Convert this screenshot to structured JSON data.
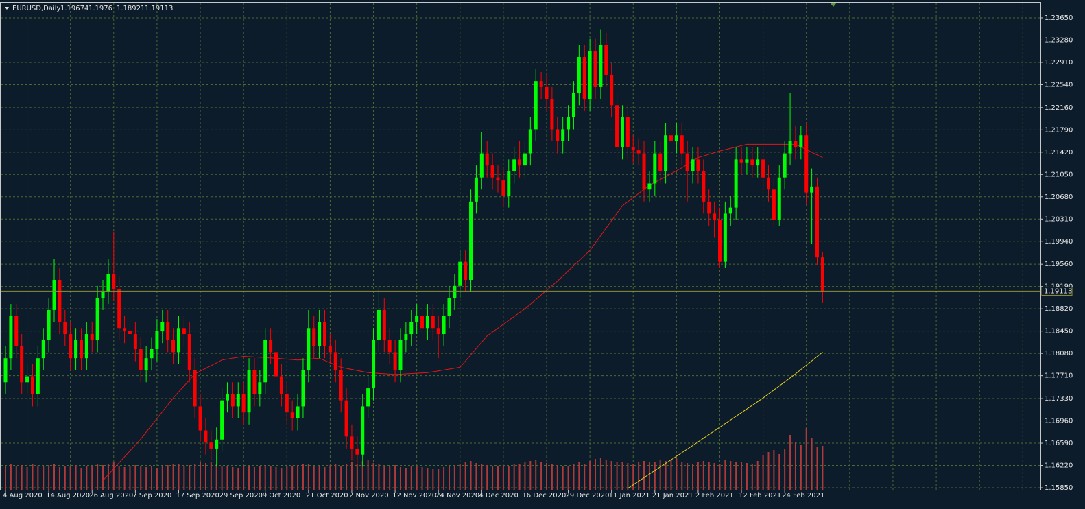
{
  "chart_data": {
    "type": "candlestick",
    "title": "EURUSD,Daily",
    "categories": [
      "4 Aug 2020",
      null,
      null,
      null,
      null,
      null,
      null,
      null,
      "14 Aug 2020",
      null,
      null,
      null,
      null,
      null,
      null,
      null,
      "26 Aug 2020",
      null,
      null,
      null,
      null,
      null,
      null,
      null,
      "7 Sep 2020",
      null,
      null,
      null,
      null,
      null,
      null,
      null,
      "17 Sep 2020",
      null,
      null,
      null,
      null,
      null,
      null,
      null,
      "29 Sep 2020",
      null,
      null,
      null,
      null,
      null,
      null,
      null,
      "9 Oct 2020",
      null,
      null,
      null,
      null,
      null,
      null,
      null,
      "21 Oct 2020",
      null,
      null,
      null,
      null,
      null,
      null,
      null,
      "2 Nov 2020",
      null,
      null,
      null,
      null,
      null,
      null,
      null,
      "12 Nov 2020",
      null,
      null,
      null,
      null,
      null,
      null,
      null,
      "24 Nov 2020",
      null,
      null,
      null,
      null,
      null,
      null,
      null,
      "4 Dec 2020",
      null,
      null,
      null,
      null,
      null,
      null,
      null,
      "16 Dec 2020",
      null,
      null,
      null,
      null,
      null,
      null,
      null,
      "29 Dec 2020",
      null,
      null,
      null,
      null,
      null,
      null,
      null,
      "11 Jan 2021",
      null,
      null,
      null,
      null,
      null,
      null,
      null,
      "21 Jan 2021",
      null,
      null,
      null,
      null,
      null,
      null,
      null,
      "2 Feb 2021",
      null,
      null,
      null,
      null,
      null,
      null,
      null,
      "12 Feb 2021",
      null,
      null,
      null,
      null,
      null,
      null,
      null,
      "24 Feb 2021",
      null,
      null,
      null,
      null,
      null,
      null,
      null
    ],
    "open": [
      1.176,
      1.18,
      1.187,
      1.182,
      1.176,
      1.177,
      1.174,
      1.18,
      1.183,
      1.188,
      1.193,
      1.186,
      1.184,
      1.18,
      1.183,
      1.18,
      1.184,
      1.183,
      1.19,
      1.191,
      1.194,
      1.1915,
      1.185,
      1.1845,
      1.184,
      1.1815,
      1.178,
      1.18,
      1.1815,
      1.1845,
      1.186,
      1.183,
      1.181,
      1.185,
      1.184,
      1.178,
      1.172,
      1.168,
      1.166,
      1.165,
      1.1665,
      1.173,
      1.174,
      1.172,
      1.174,
      1.171,
      1.178,
      1.174,
      1.176,
      1.183,
      1.181,
      1.177,
      1.174,
      1.171,
      1.17,
      1.172,
      1.178,
      1.185,
      1.182,
      1.186,
      1.182,
      1.181,
      1.178,
      1.173,
      1.167,
      1.165,
      1.164,
      1.172,
      1.175,
      1.183,
      1.188,
      1.183,
      1.181,
      1.178,
      1.183,
      1.184,
      1.186,
      1.187,
      1.185,
      1.187,
      1.185,
      1.184,
      1.187,
      1.19,
      1.192,
      1.196,
      1.193,
      1.206,
      1.21,
      1.214,
      1.212,
      1.21,
      1.2095,
      1.207,
      1.211,
      1.213,
      1.212,
      1.214,
      1.218,
      1.226,
      1.225,
      1.223,
      1.218,
      1.216,
      1.218,
      1.22,
      1.224,
      1.23,
      1.223,
      1.231,
      1.225,
      1.232,
      1.227,
      1.222,
      1.215,
      1.22,
      1.215,
      1.2145,
      1.214,
      1.208,
      1.209,
      1.214,
      1.211,
      1.217,
      1.216,
      1.217,
      1.214,
      1.211,
      1.213,
      1.211,
      1.206,
      1.204,
      1.203,
      1.196,
      1.204,
      1.205,
      1.213,
      1.2125,
      1.213,
      1.212,
      1.213,
      1.21,
      1.208,
      1.203,
      1.21,
      1.214,
      1.216,
      1.215,
      1.217,
      1.2075,
      1.2085,
      1.19674
    ],
    "high": [
      1.182,
      1.189,
      1.189,
      1.184,
      1.179,
      1.179,
      1.182,
      1.185,
      1.19,
      1.1965,
      1.195,
      1.188,
      1.186,
      1.185,
      1.185,
      1.186,
      1.186,
      1.192,
      1.193,
      1.1965,
      1.201,
      1.1935,
      1.187,
      1.1865,
      1.186,
      1.1835,
      1.182,
      1.1835,
      1.1865,
      1.188,
      1.188,
      1.185,
      1.187,
      1.187,
      1.186,
      1.18,
      1.174,
      1.17,
      1.168,
      1.1685,
      1.175,
      1.176,
      1.176,
      1.176,
      1.176,
      1.18,
      1.18,
      1.178,
      1.185,
      1.185,
      1.183,
      1.179,
      1.176,
      1.173,
      1.174,
      1.18,
      1.188,
      1.187,
      1.188,
      1.188,
      1.184,
      1.183,
      1.18,
      1.175,
      1.169,
      1.167,
      1.174,
      1.177,
      1.185,
      1.192,
      1.19,
      1.185,
      1.183,
      1.185,
      1.186,
      1.188,
      1.189,
      1.189,
      1.189,
      1.189,
      1.187,
      1.189,
      1.192,
      1.194,
      1.198,
      1.198,
      1.208,
      1.212,
      1.2175,
      1.216,
      1.214,
      1.212,
      1.2115,
      1.213,
      1.215,
      1.216,
      1.216,
      1.22,
      1.228,
      1.2275,
      1.227,
      1.225,
      1.22,
      1.22,
      1.222,
      1.226,
      1.232,
      1.232,
      1.233,
      1.233,
      1.2345,
      1.234,
      1.229,
      1.224,
      1.222,
      1.222,
      1.217,
      1.2165,
      1.216,
      1.211,
      1.216,
      1.216,
      1.219,
      1.219,
      1.219,
      1.219,
      1.216,
      1.215,
      1.215,
      1.213,
      1.208,
      1.206,
      1.205,
      1.206,
      1.207,
      1.215,
      1.215,
      1.215,
      1.215,
      1.215,
      1.215,
      1.212,
      1.21,
      1.212,
      1.216,
      1.224,
      1.2185,
      1.2185,
      1.219,
      1.2115,
      1.21,
      1.1976
    ],
    "low": [
      1.174,
      1.178,
      1.18,
      1.174,
      1.174,
      1.172,
      1.172,
      1.178,
      1.181,
      1.186,
      1.184,
      1.182,
      1.178,
      1.178,
      1.178,
      1.178,
      1.181,
      1.181,
      1.188,
      1.189,
      1.1895,
      1.183,
      1.1825,
      1.182,
      1.1795,
      1.176,
      1.176,
      1.178,
      1.1795,
      1.1825,
      1.181,
      1.179,
      1.179,
      1.182,
      1.176,
      1.17,
      1.166,
      1.164,
      1.163,
      1.162,
      1.1645,
      1.171,
      1.17,
      1.17,
      1.169,
      1.169,
      1.172,
      1.172,
      1.174,
      1.179,
      1.175,
      1.172,
      1.169,
      1.168,
      1.168,
      1.17,
      1.176,
      1.18,
      1.18,
      1.18,
      1.179,
      1.176,
      1.171,
      1.165,
      1.163,
      1.162,
      1.162,
      1.17,
      1.173,
      1.181,
      1.181,
      1.179,
      1.176,
      1.176,
      1.181,
      1.182,
      1.184,
      1.183,
      1.183,
      1.183,
      1.18,
      1.182,
      1.185,
      1.188,
      1.19,
      1.191,
      1.191,
      1.204,
      1.208,
      1.21,
      1.208,
      1.2075,
      1.205,
      1.205,
      1.209,
      1.21,
      1.21,
      1.212,
      1.216,
      1.223,
      1.221,
      1.216,
      1.214,
      1.214,
      1.216,
      1.218,
      1.222,
      1.221,
      1.221,
      1.223,
      1.223,
      1.225,
      1.22,
      1.213,
      1.213,
      1.213,
      1.2125,
      1.212,
      1.206,
      1.206,
      1.207,
      1.209,
      1.209,
      1.214,
      1.214,
      1.212,
      1.206,
      1.209,
      1.209,
      1.204,
      1.202,
      1.2,
      1.195,
      1.195,
      1.202,
      1.203,
      1.2105,
      1.2105,
      1.21,
      1.21,
      1.208,
      1.206,
      1.202,
      1.202,
      1.208,
      1.212,
      1.213,
      1.213,
      1.2055,
      1.199,
      1.1955,
      1.18921
    ],
    "close": [
      1.18,
      1.187,
      1.182,
      1.176,
      1.177,
      1.174,
      1.18,
      1.183,
      1.188,
      1.193,
      1.186,
      1.184,
      1.18,
      1.183,
      1.18,
      1.184,
      1.183,
      1.19,
      1.191,
      1.194,
      1.1915,
      1.185,
      1.1845,
      1.184,
      1.1815,
      1.178,
      1.18,
      1.1815,
      1.1845,
      1.186,
      1.183,
      1.181,
      1.185,
      1.184,
      1.178,
      1.172,
      1.168,
      1.166,
      1.165,
      1.1665,
      1.173,
      1.174,
      1.172,
      1.174,
      1.171,
      1.178,
      1.174,
      1.176,
      1.183,
      1.181,
      1.177,
      1.174,
      1.171,
      1.17,
      1.172,
      1.178,
      1.185,
      1.182,
      1.186,
      1.182,
      1.181,
      1.178,
      1.173,
      1.167,
      1.165,
      1.164,
      1.172,
      1.175,
      1.183,
      1.188,
      1.183,
      1.181,
      1.178,
      1.183,
      1.184,
      1.186,
      1.187,
      1.185,
      1.187,
      1.185,
      1.184,
      1.187,
      1.19,
      1.192,
      1.196,
      1.193,
      1.206,
      1.21,
      1.214,
      1.212,
      1.21,
      1.2095,
      1.207,
      1.211,
      1.213,
      1.212,
      1.214,
      1.218,
      1.226,
      1.225,
      1.223,
      1.218,
      1.216,
      1.218,
      1.22,
      1.224,
      1.23,
      1.223,
      1.231,
      1.225,
      1.232,
      1.227,
      1.222,
      1.215,
      1.22,
      1.215,
      1.2145,
      1.214,
      1.208,
      1.209,
      1.214,
      1.211,
      1.217,
      1.216,
      1.217,
      1.214,
      1.211,
      1.213,
      1.211,
      1.206,
      1.204,
      1.203,
      1.196,
      1.204,
      1.205,
      1.213,
      1.2125,
      1.213,
      1.212,
      1.213,
      1.21,
      1.208,
      1.203,
      1.21,
      1.214,
      1.216,
      1.215,
      1.217,
      1.2075,
      1.2085,
      1.19674,
      1.19113
    ],
    "up_color": "#00ff00",
    "down_color": "#ff0000",
    "lines": [
      {
        "color": "#e01818",
        "x": [
          18,
          25,
          31,
          35,
          40,
          44,
          50,
          54,
          58,
          62,
          67,
          72,
          78,
          84,
          89,
          96,
          102,
          108,
          114,
          119,
          125,
          128,
          132,
          137,
          141,
          146,
          151
        ],
        "values": [
          1.1597,
          1.1666,
          1.1734,
          1.1774,
          1.1797,
          1.1803,
          1.18,
          1.1797,
          1.18,
          1.1785,
          1.1776,
          1.1773,
          1.1776,
          1.1785,
          1.1837,
          1.1882,
          1.1928,
          1.1979,
          1.2053,
          1.2087,
          1.2116,
          1.2133,
          1.2144,
          1.2155,
          1.2155,
          1.2155,
          1.2133
        ]
      },
      {
        "color": "#e8d020",
        "x": [
          115,
          127,
          140,
          146,
          151
        ],
        "values": [
          1.1584,
          1.1655,
          1.1734,
          1.1774,
          1.181
        ]
      }
    ],
    "volume": {
      "color": "#b03a3a",
      "values": [
        35,
        38,
        34,
        36,
        33,
        37,
        35,
        34,
        36,
        38,
        33,
        35,
        34,
        36,
        32,
        34,
        35,
        37,
        36,
        38,
        40,
        34,
        33,
        35,
        36,
        34,
        33,
        35,
        32,
        34,
        36,
        38,
        37,
        35,
        36,
        38,
        40,
        39,
        41,
        37,
        35,
        34,
        33,
        32,
        34,
        35,
        33,
        34,
        36,
        35,
        33,
        32,
        34,
        35,
        36,
        38,
        37,
        35,
        34,
        33,
        36,
        37,
        35,
        38,
        40,
        38,
        42,
        44,
        39,
        37,
        35,
        34,
        36,
        33,
        32,
        34,
        35,
        33,
        32,
        31,
        30,
        33,
        34,
        36,
        38,
        40,
        42,
        39,
        37,
        36,
        35,
        34,
        36,
        35,
        37,
        38,
        40,
        42,
        44,
        41,
        39,
        38,
        36,
        35,
        34,
        37,
        40,
        38,
        42,
        45,
        47,
        44,
        42,
        41,
        40,
        39,
        38,
        40,
        42,
        41,
        40,
        43,
        42,
        44,
        46,
        40,
        39,
        38,
        41,
        42,
        40,
        39,
        38,
        44,
        42,
        41,
        40,
        39,
        38,
        42,
        50,
        55,
        58,
        52,
        60,
        80,
        70,
        66,
        90,
        75,
        62,
        64
      ]
    },
    "price_line_color": "#8f8f3a",
    "ylim": [
      1.15816,
      1.239
    ],
    "yticks": [
      {
        "value": 1.2365,
        "label": "1.23650"
      },
      {
        "value": 1.2328,
        "label": "1.23280"
      },
      {
        "value": 1.2291,
        "label": "1.22910"
      },
      {
        "value": 1.2254,
        "label": "1.22540"
      },
      {
        "value": 1.2216,
        "label": "1.22160"
      },
      {
        "value": 1.2179,
        "label": "1.21790"
      },
      {
        "value": 1.2142,
        "label": "1.21420"
      },
      {
        "value": 1.2105,
        "label": "1.21050"
      },
      {
        "value": 1.2068,
        "label": "1.20680"
      },
      {
        "value": 1.2031,
        "label": "1.20310"
      },
      {
        "value": 1.1994,
        "label": "1.19940"
      },
      {
        "value": 1.1956,
        "label": "1.19560"
      },
      {
        "value": 1.1919,
        "label": "1.19190"
      },
      {
        "value": 1.1882,
        "label": "1.18820"
      },
      {
        "value": 1.1845,
        "label": "1.18450"
      },
      {
        "value": 1.1808,
        "label": "1.18080"
      },
      {
        "value": 1.1771,
        "label": "1.17710"
      },
      {
        "value": 1.1733,
        "label": "1.17330"
      },
      {
        "value": 1.1696,
        "label": "1.16960"
      },
      {
        "value": 1.1659,
        "label": "1.16590"
      },
      {
        "value": 1.1622,
        "label": "1.16220"
      },
      {
        "value": 1.1585,
        "label": "1.15850"
      }
    ],
    "grid": true,
    "grid_color": "#4a6a34"
  }
}
